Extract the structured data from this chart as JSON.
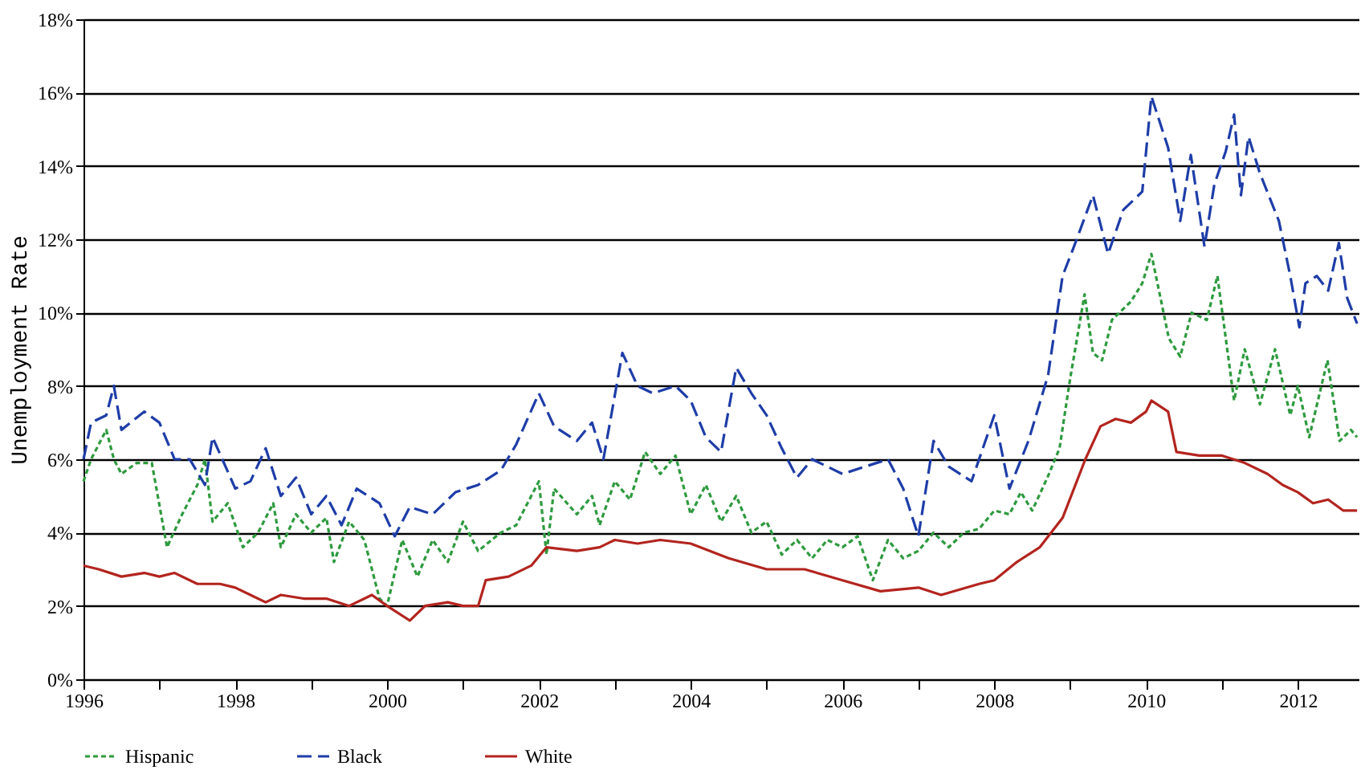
{
  "chart_data": {
    "type": "line",
    "ylabel": "Unemployment Rate",
    "xlim": [
      1996,
      2012.8
    ],
    "ylim": [
      0,
      18
    ],
    "xticks": [
      1996,
      {
        "value": 1997,
        "label": null
      },
      1998,
      {
        "value": 1999,
        "label": null
      },
      2000,
      {
        "value": 2001,
        "label": null
      },
      2002,
      {
        "value": 2003,
        "label": null
      },
      2004,
      {
        "value": 2005,
        "label": null
      },
      2006,
      {
        "value": 2007,
        "label": null
      },
      2008,
      {
        "value": 2009,
        "label": null
      },
      2010,
      {
        "value": 2011,
        "label": null
      },
      2012
    ],
    "yticks": [
      {
        "value": 0,
        "label": "0%"
      },
      {
        "value": 2,
        "label": "2%"
      },
      {
        "value": 4,
        "label": "4%"
      },
      {
        "value": 6,
        "label": "6%"
      },
      {
        "value": 8,
        "label": "8%"
      },
      {
        "value": 10,
        "label": "10%"
      },
      {
        "value": 12,
        "label": "12%"
      },
      {
        "value": 14,
        "label": "14%"
      },
      {
        "value": 16,
        "label": "16%"
      },
      {
        "value": 18,
        "label": "18%"
      }
    ],
    "grid": "y",
    "legend": "bottom",
    "marker": "none",
    "series": [
      {
        "name": "Hispanic",
        "color": "#2e9a3e",
        "line_style": "dotted",
        "x": [
          1996.0,
          1996.1,
          1996.3,
          1996.4,
          1996.5,
          1996.7,
          1996.9,
          1997.1,
          1997.3,
          1997.5,
          1997.6,
          1997.7,
          1997.9,
          1998.1,
          1998.3,
          1998.5,
          1998.6,
          1998.8,
          1999.0,
          1999.2,
          1999.3,
          1999.5,
          1999.7,
          1999.9,
          2000.0,
          2000.2,
          2000.4,
          2000.6,
          2000.8,
          2001.0,
          2001.2,
          2001.5,
          2001.7,
          2002.0,
          2002.1,
          2002.2,
          2002.5,
          2002.7,
          2002.8,
          2003.0,
          2003.2,
          2003.4,
          2003.6,
          2003.8,
          2004.0,
          2004.2,
          2004.4,
          2004.6,
          2004.8,
          2005.0,
          2005.2,
          2005.4,
          2005.6,
          2005.8,
          2006.0,
          2006.2,
          2006.4,
          2006.6,
          2006.8,
          2007.0,
          2007.2,
          2007.4,
          2007.6,
          2007.8,
          2008.0,
          2008.2,
          2008.35,
          2008.5,
          2008.7,
          2008.86,
          2009.0,
          2009.19,
          2009.3,
          2009.42,
          2009.55,
          2009.8,
          2009.95,
          2010.07,
          2010.3,
          2010.45,
          2010.6,
          2010.8,
          2010.94,
          2011.16,
          2011.3,
          2011.5,
          2011.7,
          2011.9,
          2012.0,
          2012.15,
          2012.39,
          2012.55,
          2012.7,
          2012.78
        ],
        "values": [
          5.4,
          6.0,
          6.8,
          6.0,
          5.6,
          5.9,
          5.9,
          3.6,
          4.5,
          5.3,
          6.0,
          4.3,
          4.8,
          3.6,
          4.0,
          4.8,
          3.6,
          4.5,
          4.0,
          4.4,
          3.2,
          4.3,
          3.8,
          2.2,
          2.0,
          3.8,
          2.8,
          3.8,
          3.2,
          4.3,
          3.5,
          4.0,
          4.2,
          5.4,
          3.4,
          5.2,
          4.5,
          5.0,
          4.2,
          5.4,
          4.9,
          6.2,
          5.6,
          6.1,
          4.5,
          5.3,
          4.3,
          5.0,
          4.0,
          4.3,
          3.4,
          3.8,
          3.3,
          3.8,
          3.6,
          3.9,
          2.7,
          3.8,
          3.3,
          3.5,
          4.0,
          3.6,
          4.0,
          4.1,
          4.6,
          4.5,
          5.1,
          4.6,
          5.5,
          6.3,
          8.2,
          10.5,
          8.9,
          8.7,
          9.8,
          10.3,
          10.8,
          11.6,
          9.3,
          8.8,
          10.0,
          9.8,
          11.0,
          7.6,
          9.0,
          7.5,
          9.0,
          7.2,
          8.0,
          6.6,
          8.7,
          6.5,
          6.8,
          6.6
        ]
      },
      {
        "name": "Black",
        "color": "#1e3da8",
        "line_style": "dashed",
        "x": [
          1996.0,
          1996.1,
          1996.3,
          1996.4,
          1996.5,
          1996.8,
          1997.0,
          1997.2,
          1997.4,
          1997.6,
          1997.7,
          1998.0,
          1998.2,
          1998.4,
          1998.6,
          1998.8,
          1999.0,
          1999.2,
          1999.4,
          1999.6,
          1999.9,
          2000.1,
          2000.3,
          2000.6,
          2000.9,
          2001.2,
          2001.5,
          2001.7,
          2002.0,
          2002.2,
          2002.5,
          2002.7,
          2002.85,
          2003.1,
          2003.3,
          2003.5,
          2003.8,
          2004.0,
          2004.2,
          2004.4,
          2004.6,
          2004.8,
          2005.0,
          2005.2,
          2005.4,
          2005.6,
          2006.0,
          2006.3,
          2006.6,
          2006.8,
          2007.0,
          2007.2,
          2007.4,
          2007.7,
          2008.0,
          2008.2,
          2008.45,
          2008.71,
          2008.9,
          2009.05,
          2009.3,
          2009.5,
          2009.7,
          2009.95,
          2010.07,
          2010.29,
          2010.45,
          2010.59,
          2010.77,
          2010.9,
          2011.05,
          2011.16,
          2011.25,
          2011.35,
          2011.5,
          2011.75,
          2011.9,
          2012.02,
          2012.1,
          2012.25,
          2012.4,
          2012.54,
          2012.65,
          2012.78
        ],
        "values": [
          6.0,
          7.0,
          7.2,
          8.0,
          6.8,
          7.3,
          7.0,
          6.0,
          6.0,
          5.3,
          6.6,
          5.2,
          5.4,
          6.3,
          5.0,
          5.5,
          4.5,
          5.0,
          4.2,
          5.2,
          4.8,
          3.9,
          4.7,
          4.5,
          5.1,
          5.3,
          5.7,
          6.4,
          7.8,
          6.9,
          6.5,
          7.0,
          6.0,
          8.9,
          8.0,
          7.8,
          8.0,
          7.6,
          6.6,
          6.2,
          8.5,
          7.8,
          7.2,
          6.3,
          5.5,
          6.0,
          5.6,
          5.8,
          6.0,
          5.2,
          3.9,
          6.5,
          5.8,
          5.4,
          7.2,
          5.2,
          6.5,
          8.3,
          11.0,
          11.8,
          13.2,
          11.6,
          12.8,
          13.3,
          15.9,
          14.5,
          12.5,
          14.3,
          11.8,
          13.5,
          14.4,
          15.4,
          13.2,
          14.8,
          13.8,
          12.5,
          11.0,
          9.6,
          10.8,
          11.0,
          10.6,
          11.9,
          10.4,
          9.7
        ]
      },
      {
        "name": "White",
        "color": "#b3241e",
        "line_style": "solid",
        "x": [
          1996.0,
          1996.2,
          1996.5,
          1996.8,
          1997.0,
          1997.2,
          1997.5,
          1997.8,
          1998.0,
          1998.2,
          1998.4,
          1998.6,
          1998.9,
          1999.2,
          1999.5,
          1999.8,
          2000.0,
          2000.3,
          2000.5,
          2000.8,
          2001.0,
          2001.2,
          2001.3,
          2001.6,
          2001.9,
          2002.1,
          2002.5,
          2002.8,
          2003.0,
          2003.3,
          2003.6,
          2004.0,
          2004.5,
          2005.0,
          2005.5,
          2006.0,
          2006.5,
          2007.0,
          2007.3,
          2007.8,
          2008.0,
          2008.3,
          2008.6,
          2008.9,
          2009.2,
          2009.4,
          2009.6,
          2009.8,
          2010.0,
          2010.07,
          2010.29,
          2010.4,
          2010.7,
          2011.0,
          2011.3,
          2011.6,
          2011.8,
          2012.0,
          2012.2,
          2012.4,
          2012.6,
          2012.78
        ],
        "values": [
          3.1,
          3.0,
          2.8,
          2.9,
          2.8,
          2.9,
          2.6,
          2.6,
          2.5,
          2.3,
          2.1,
          2.3,
          2.2,
          2.2,
          2.0,
          2.3,
          2.0,
          1.6,
          2.0,
          2.1,
          2.0,
          2.0,
          2.7,
          2.8,
          3.1,
          3.6,
          3.5,
          3.6,
          3.8,
          3.7,
          3.8,
          3.7,
          3.3,
          3.0,
          3.0,
          2.7,
          2.4,
          2.5,
          2.3,
          2.6,
          2.7,
          3.2,
          3.6,
          4.4,
          6.0,
          6.9,
          7.1,
          7.0,
          7.3,
          7.6,
          7.3,
          6.2,
          6.1,
          6.1,
          5.9,
          5.6,
          5.3,
          5.1,
          4.8,
          4.9,
          4.6,
          4.6
        ]
      }
    ]
  }
}
